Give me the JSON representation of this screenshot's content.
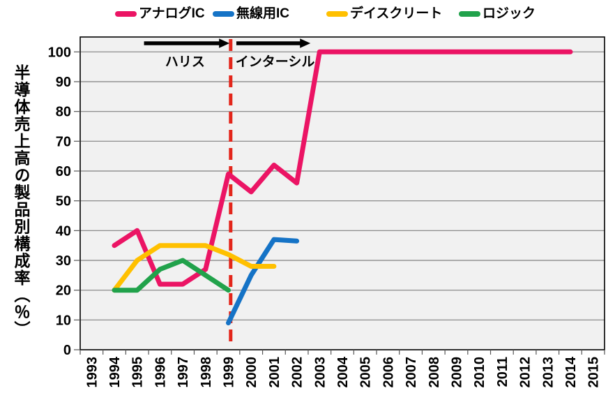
{
  "chart_data": {
    "type": "line",
    "title": "",
    "ylabel": "半導体売上高の製品別構成率（％）",
    "xlabel": "",
    "x_categories": [
      "1993",
      "1994",
      "1995",
      "1996",
      "1997",
      "1998",
      "1999",
      "2000",
      "2001",
      "2002",
      "2003",
      "2004",
      "2005",
      "2006",
      "2007",
      "2008",
      "2009",
      "2010",
      "2011",
      "2012",
      "2013",
      "2014",
      "2015"
    ],
    "ylim": [
      0,
      105
    ],
    "yticks": [
      0,
      10,
      20,
      30,
      40,
      50,
      60,
      70,
      80,
      90,
      100
    ],
    "grid": true,
    "legend_position": "top",
    "plot_bg_color": "#F1F1F1",
    "grid_color": "#808080",
    "axis_color": "#000000",
    "series": [
      {
        "key": "analog-ic",
        "name": "アナログIC",
        "color": "#EB1464",
        "points": [
          [
            1994,
            35
          ],
          [
            1995,
            40
          ],
          [
            1996,
            22
          ],
          [
            1997,
            22
          ],
          [
            1998,
            27
          ],
          [
            1999,
            59
          ],
          [
            2000,
            53
          ],
          [
            2001,
            62
          ],
          [
            2002,
            56
          ],
          [
            2003,
            100
          ],
          [
            2014,
            100
          ]
        ]
      },
      {
        "key": "wireless-ic",
        "name": "無線用IC",
        "color": "#1573C6",
        "points": [
          [
            1999,
            9
          ],
          [
            2000,
            25
          ],
          [
            2001,
            37
          ],
          [
            2002,
            36.5
          ]
        ]
      },
      {
        "key": "discrete",
        "name": "デイスクリート",
        "color": "#FFC000",
        "points": [
          [
            1994,
            20
          ],
          [
            1995,
            30
          ],
          [
            1996,
            35
          ],
          [
            1997,
            35
          ],
          [
            1998,
            35
          ],
          [
            1999,
            32
          ],
          [
            2000,
            28
          ],
          [
            2001,
            28
          ]
        ]
      },
      {
        "key": "logic",
        "name": "ロジック",
        "color": "#21A24B",
        "points": [
          [
            1994,
            20
          ],
          [
            1995,
            20
          ],
          [
            1996,
            27
          ],
          [
            1997,
            30
          ],
          [
            1998,
            25
          ],
          [
            1999,
            20
          ]
        ]
      }
    ],
    "annotations": {
      "divider": {
        "year": 1999.1,
        "color": "#E3261B",
        "style": "dashed"
      },
      "eras": [
        {
          "key": "harris",
          "label": "ハリス",
          "arrow_from_year": 1995.3,
          "arrow_to_year": 1999.05,
          "label_year": 1997.1
        },
        {
          "key": "intersil",
          "label": "インターシル",
          "arrow_from_year": 1999.35,
          "arrow_to_year": 2002.6,
          "label_year": 2001.05
        }
      ],
      "arrow_color": "#000000"
    }
  }
}
